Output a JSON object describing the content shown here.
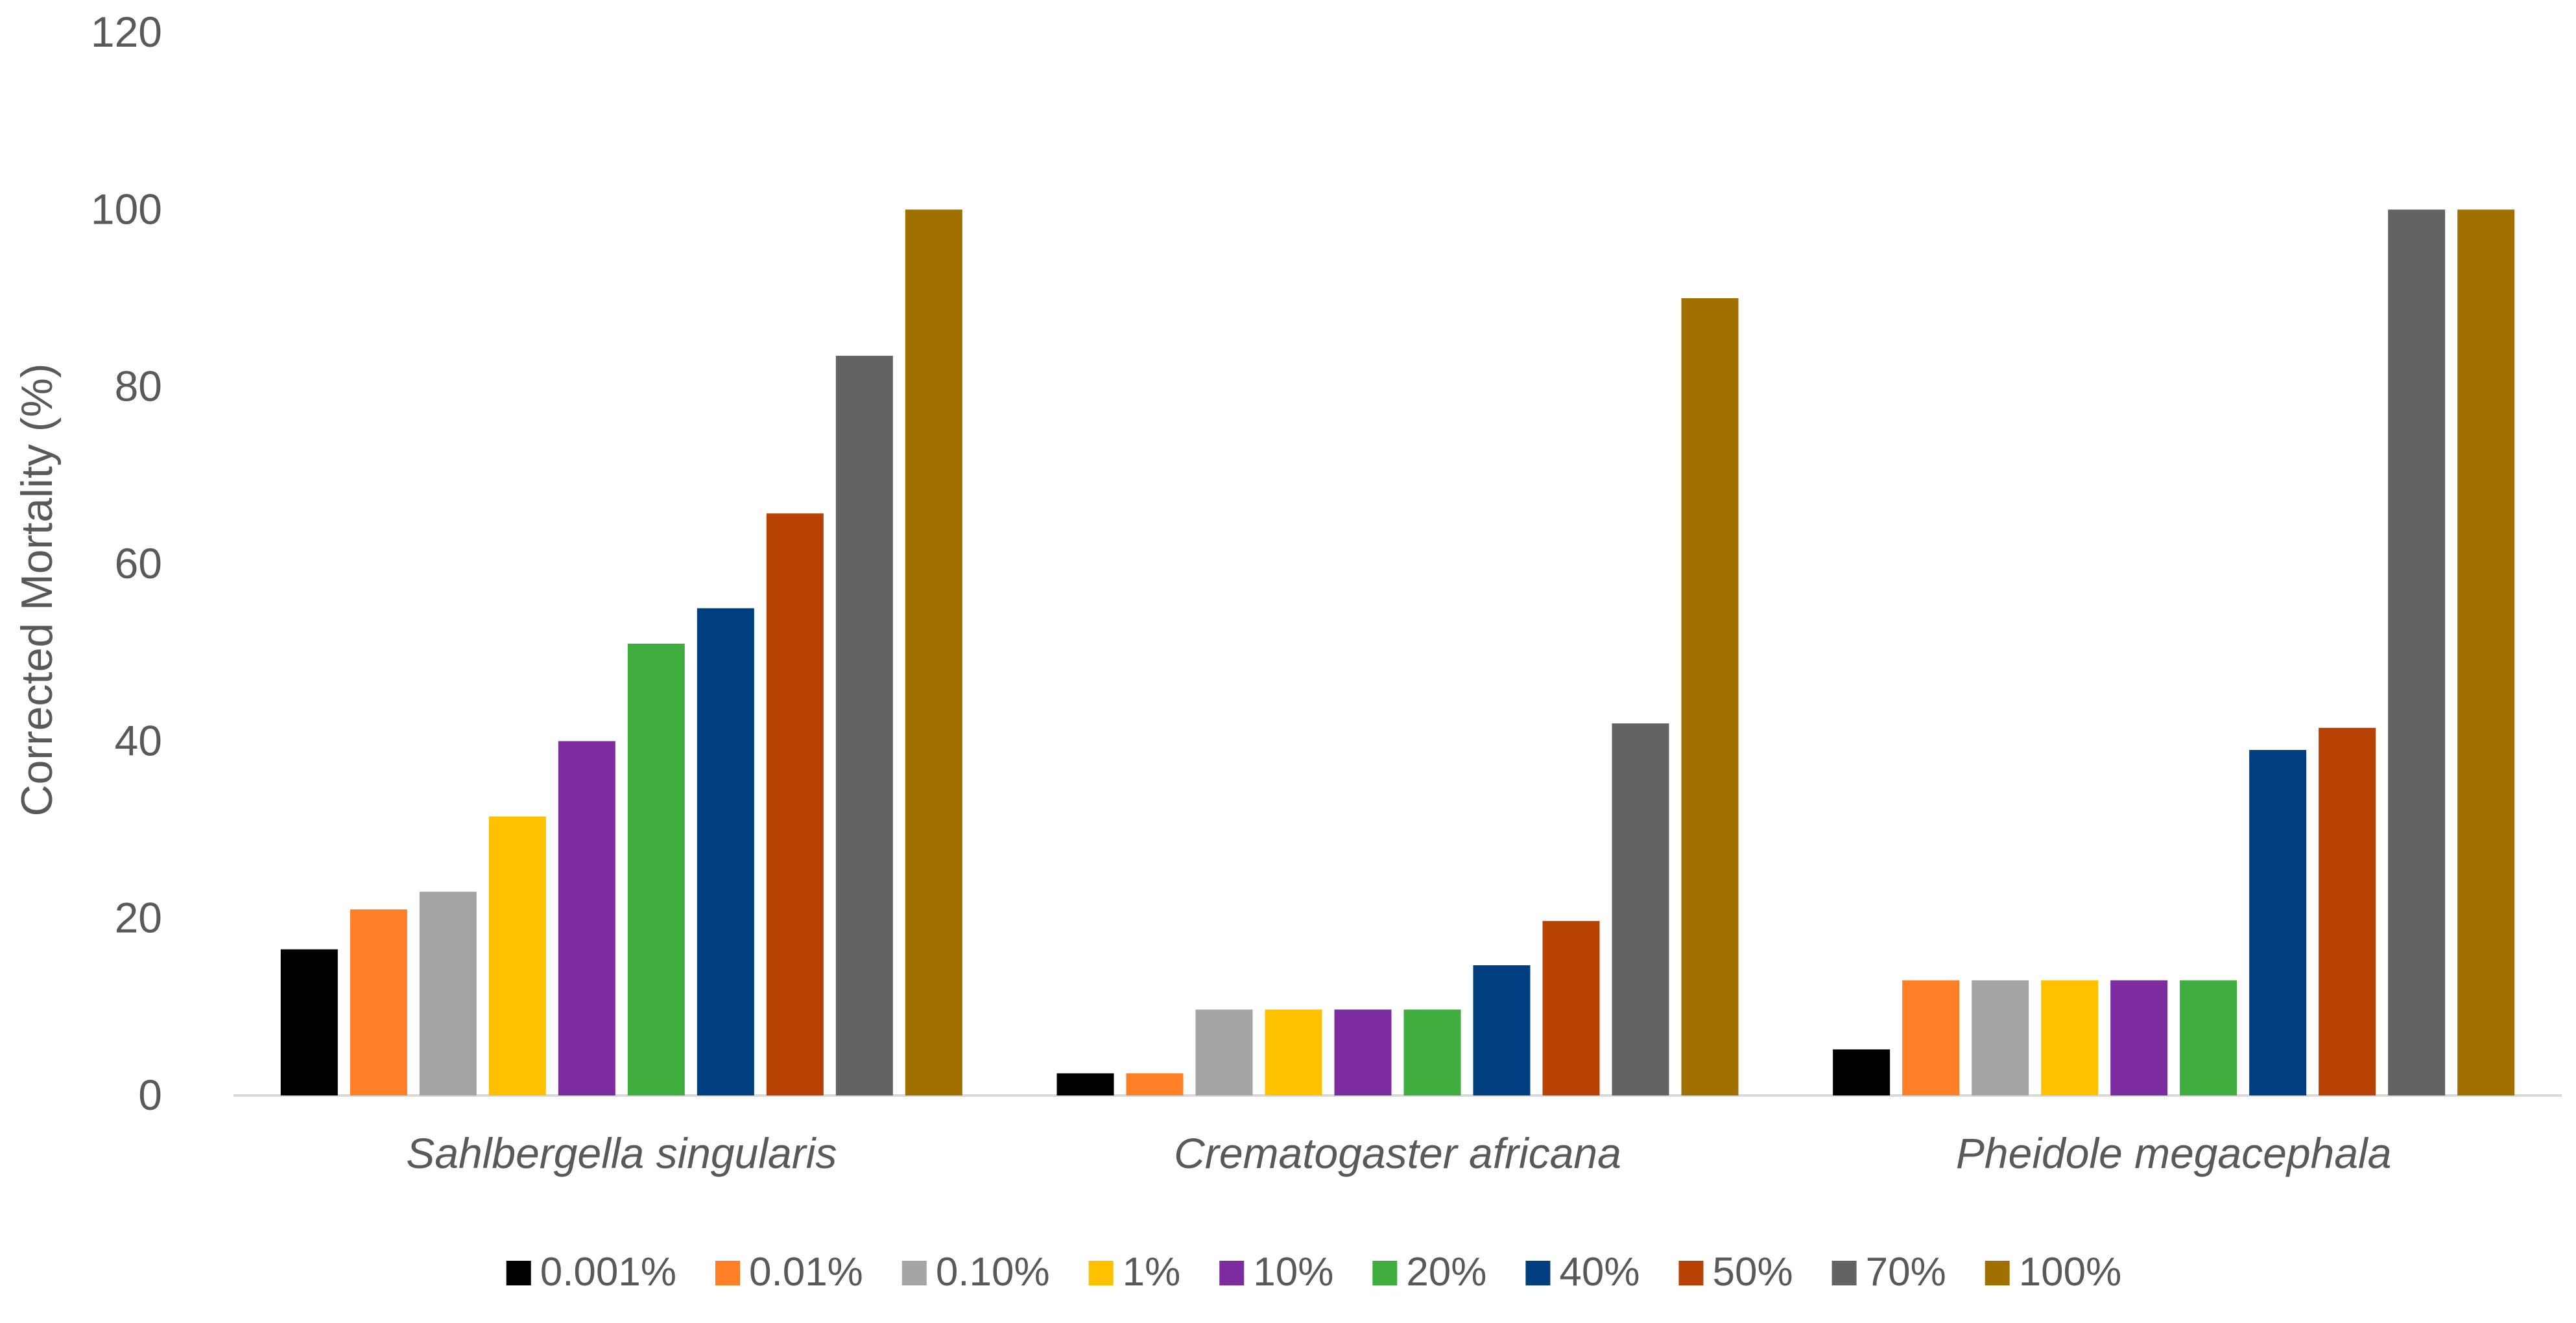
{
  "chart_data": {
    "type": "bar",
    "title": "",
    "xlabel": "",
    "ylabel": "Corrected Mortality (%)",
    "ylim": [
      0,
      120
    ],
    "yticks": [
      0,
      20,
      40,
      60,
      80,
      100,
      120
    ],
    "grid": false,
    "legend_position": "bottom",
    "categories": [
      "Sahlbergella singularis",
      "Crematogaster africana",
      "Pheidole megacephala"
    ],
    "series": [
      {
        "name": "0.001%",
        "color": "#000000",
        "values": [
          16.5,
          2.5,
          5.2
        ]
      },
      {
        "name": "0.01%",
        "color": "#ff7f27",
        "values": [
          21,
          2.5,
          13
        ]
      },
      {
        "name": "0.10%",
        "color": "#a5a5a5",
        "values": [
          23,
          9.7,
          13
        ]
      },
      {
        "name": "1%",
        "color": "#ffc000",
        "values": [
          31.5,
          9.7,
          13
        ]
      },
      {
        "name": "10%",
        "color": "#7d2ca0",
        "values": [
          40,
          9.7,
          13
        ]
      },
      {
        "name": "20%",
        "color": "#3fae3f",
        "values": [
          51,
          9.7,
          13
        ]
      },
      {
        "name": "40%",
        "color": "#003f7f",
        "values": [
          55,
          14.7,
          39
        ]
      },
      {
        "name": "50%",
        "color": "#b84203",
        "values": [
          65.7,
          19.7,
          41.5
        ]
      },
      {
        "name": "70%",
        "color": "#636363",
        "values": [
          83.5,
          42,
          100
        ]
      },
      {
        "name": "100%",
        "color": "#a07000",
        "values": [
          100,
          90,
          100
        ]
      }
    ]
  }
}
